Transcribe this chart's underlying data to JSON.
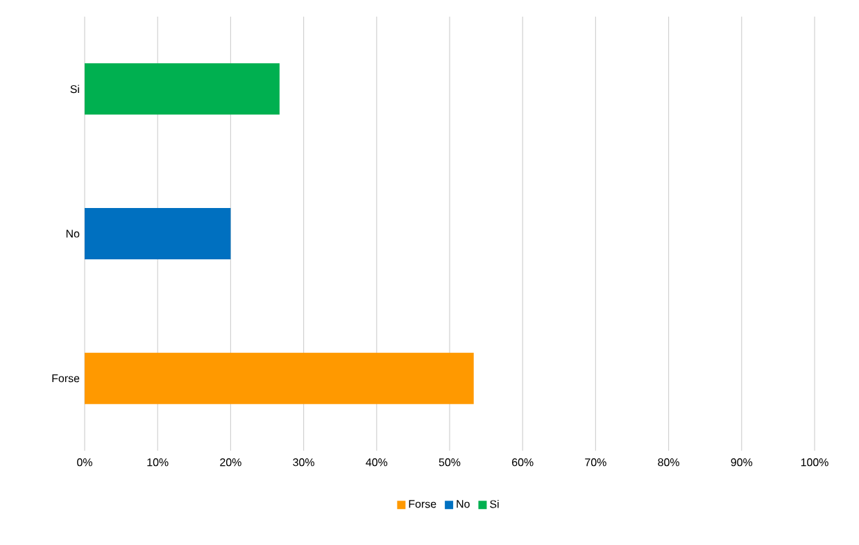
{
  "chart_data": {
    "type": "bar",
    "orientation": "horizontal",
    "categories": [
      "Si",
      "No",
      "Forse"
    ],
    "series": [
      {
        "name": "Forse",
        "color": "#ff9900",
        "values": [
          null,
          null,
          53.3
        ]
      },
      {
        "name": "No",
        "color": "#0070c0",
        "values": [
          null,
          20,
          null
        ]
      },
      {
        "name": "Si",
        "color": "#00b050",
        "values": [
          26.7,
          null,
          null
        ]
      }
    ],
    "xlim": [
      0,
      100
    ],
    "xticks": [
      {
        "value": 0,
        "label": "0%"
      },
      {
        "value": 10,
        "label": "10%"
      },
      {
        "value": 20,
        "label": "20%"
      },
      {
        "value": 30,
        "label": "30%"
      },
      {
        "value": 40,
        "label": "40%"
      },
      {
        "value": 50,
        "label": "50%"
      },
      {
        "value": 60,
        "label": "60%"
      },
      {
        "value": 70,
        "label": "70%"
      },
      {
        "value": 80,
        "label": "80%"
      },
      {
        "value": 90,
        "label": "90%"
      },
      {
        "value": 100,
        "label": "100%"
      }
    ],
    "grid": "x",
    "legend": "bottom"
  }
}
